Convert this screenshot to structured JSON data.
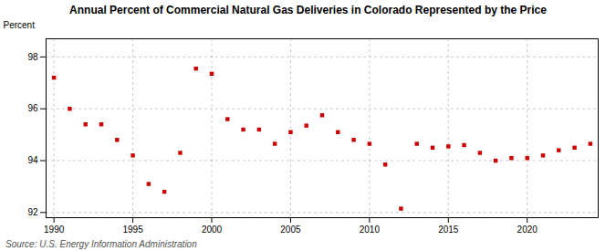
{
  "chart_data": {
    "type": "scatter",
    "title": "Annual Percent of Commercial Natural Gas Deliveries in Colorado Represented by the Price",
    "ylabel": "Percent",
    "source": "Source: U.S. Energy Information Administration",
    "x": [
      1990,
      1991,
      1992,
      1993,
      1994,
      1995,
      1996,
      1997,
      1998,
      1999,
      2000,
      2001,
      2002,
      2003,
      2004,
      2005,
      2006,
      2007,
      2008,
      2009,
      2010,
      2011,
      2012,
      2013,
      2014,
      2015,
      2016,
      2017,
      2018,
      2019,
      2020,
      2021,
      2022,
      2023,
      2024
    ],
    "values": [
      97.2,
      96.0,
      95.4,
      95.4,
      94.8,
      94.2,
      93.1,
      92.8,
      94.3,
      97.55,
      97.35,
      95.6,
      95.2,
      95.2,
      94.65,
      95.1,
      95.35,
      95.75,
      95.1,
      94.8,
      94.65,
      93.85,
      92.15,
      94.65,
      94.5,
      94.55,
      94.6,
      94.3,
      94.0,
      94.1,
      94.1,
      94.2,
      94.4,
      94.5,
      94.65
    ],
    "color": "#cc0000",
    "marker": "square",
    "xlim": [
      1989.5,
      2024.5
    ],
    "ylim": [
      91.8,
      98.7
    ],
    "xticks": [
      1990,
      1995,
      2000,
      2005,
      2010,
      2015,
      2020
    ],
    "yticks": [
      92,
      94,
      96,
      98
    ],
    "grid": true
  }
}
